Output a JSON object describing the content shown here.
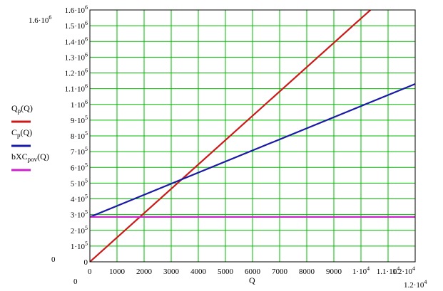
{
  "chart_data": {
    "type": "line",
    "xlabel": "Q",
    "x_range_labels": {
      "min": "0",
      "max": "1.2·10",
      "max_exp": "4"
    },
    "y_range_labels": {
      "min": "0",
      "max": "1.6·10",
      "max_exp": "6"
    },
    "xlim": [
      0,
      12000
    ],
    "ylim": [
      0,
      1600000
    ],
    "grid": true,
    "x_ticks": [
      {
        "value": 0,
        "text": "0",
        "sup": ""
      },
      {
        "value": 1000,
        "text": "1000",
        "sup": ""
      },
      {
        "value": 2000,
        "text": "2000",
        "sup": ""
      },
      {
        "value": 3000,
        "text": "3000",
        "sup": ""
      },
      {
        "value": 4000,
        "text": "4000",
        "sup": ""
      },
      {
        "value": 5000,
        "text": "5000",
        "sup": ""
      },
      {
        "value": 6000,
        "text": "6000",
        "sup": ""
      },
      {
        "value": 7000,
        "text": "7000",
        "sup": ""
      },
      {
        "value": 8000,
        "text": "8000",
        "sup": ""
      },
      {
        "value": 9000,
        "text": "9000",
        "sup": ""
      },
      {
        "value": 10000,
        "text": "1·10",
        "sup": "4"
      },
      {
        "value": 11000,
        "text": "1.1·10",
        "sup": "4"
      },
      {
        "value": 12000,
        "text": "1.2·10",
        "sup": "4"
      }
    ],
    "y_ticks": [
      {
        "value": 0,
        "text": "0",
        "sup": ""
      },
      {
        "value": 100000,
        "text": "1·10",
        "sup": "5"
      },
      {
        "value": 200000,
        "text": "2·10",
        "sup": "5"
      },
      {
        "value": 300000,
        "text": "3·10",
        "sup": "5"
      },
      {
        "value": 400000,
        "text": "4·10",
        "sup": "5"
      },
      {
        "value": 500000,
        "text": "5·10",
        "sup": "5"
      },
      {
        "value": 600000,
        "text": "6·10",
        "sup": "5"
      },
      {
        "value": 700000,
        "text": "7·10",
        "sup": "5"
      },
      {
        "value": 800000,
        "text": "8·10",
        "sup": "5"
      },
      {
        "value": 900000,
        "text": "9·10",
        "sup": "5"
      },
      {
        "value": 1000000,
        "text": "1·10",
        "sup": "6"
      },
      {
        "value": 1100000,
        "text": "1.1·10",
        "sup": "6"
      },
      {
        "value": 1200000,
        "text": "1.2·10",
        "sup": "6"
      },
      {
        "value": 1300000,
        "text": "1.3·10",
        "sup": "6"
      },
      {
        "value": 1400000,
        "text": "1.4·10",
        "sup": "6"
      },
      {
        "value": 1500000,
        "text": "1.5·10",
        "sup": "6"
      },
      {
        "value": 1600000,
        "text": "1.6·10",
        "sup": "6"
      }
    ],
    "series": [
      {
        "name": "Q_p(Q)",
        "base": "Q",
        "sub": "p",
        "arg": "(Q)",
        "color": "#cc1a1a",
        "x": [
          0,
          10350
        ],
        "y": [
          0,
          1600000
        ]
      },
      {
        "name": "C_p(Q)",
        "base": "C",
        "sub": "p",
        "arg": "(Q)",
        "color": "#1a1aa8",
        "x": [
          0,
          12000
        ],
        "y": [
          285000,
          1130000
        ]
      },
      {
        "name": "bXC_pov(Q)",
        "base": "bXC",
        "sub": "pov",
        "arg": "(Q)",
        "color": "#cc22cc",
        "x": [
          0,
          12000
        ],
        "y": [
          285000,
          285000
        ]
      }
    ],
    "colors": {
      "grid": "#00bb00",
      "frame": "#000000",
      "background": "#ffffff"
    }
  }
}
